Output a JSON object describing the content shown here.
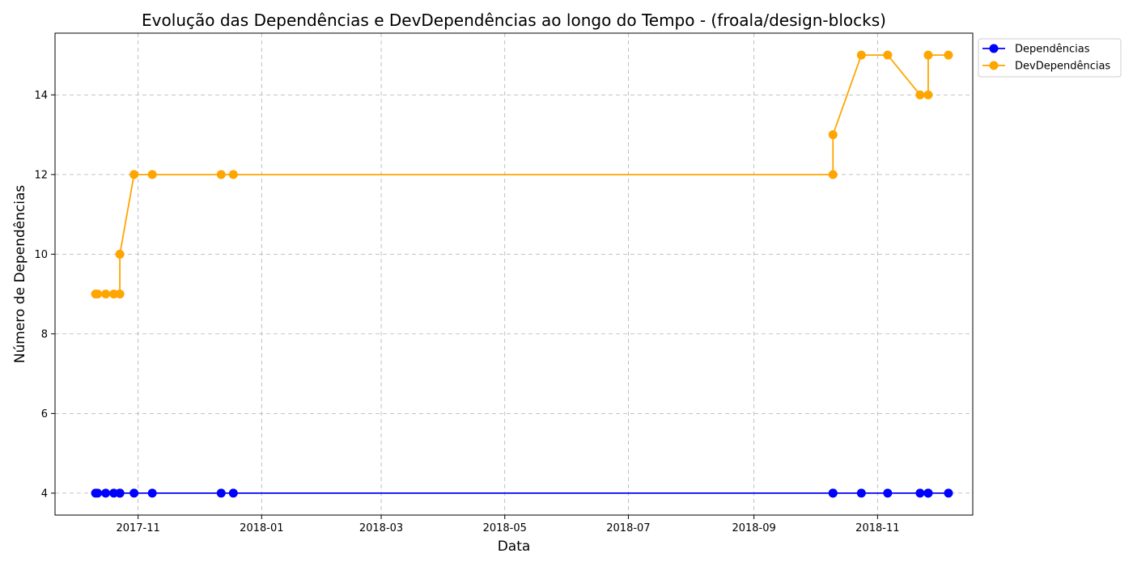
{
  "chart_data": {
    "type": "line",
    "title": "Evolução das Dependências e DevDependências ao longo do Tempo - (froala/design-blocks)",
    "xlabel": "Data",
    "ylabel": "Número de Dependências",
    "x_ticks": [
      "2017-11",
      "2018-01",
      "2018-03",
      "2018-05",
      "2018-07",
      "2018-09",
      "2018-11"
    ],
    "y_ticks": [
      "4",
      "6",
      "8",
      "10",
      "12",
      "14"
    ],
    "xlim": [
      "2017-09-21",
      "2018-12-18"
    ],
    "ylim": [
      3.45,
      15.55
    ],
    "grid": true,
    "legend_position": "top-right",
    "x": [
      "2017-10-11",
      "2017-10-12",
      "2017-10-16",
      "2017-10-20",
      "2017-10-23",
      "2017-10-23",
      "2017-10-30",
      "2017-11-08",
      "2017-12-12",
      "2017-12-18",
      "2018-10-10",
      "2018-10-10",
      "2018-10-24",
      "2018-11-06",
      "2018-11-22",
      "2018-11-26",
      "2018-11-26",
      "2018-12-06"
    ],
    "series": [
      {
        "name": "Dependências",
        "color": "#0000ff",
        "values": [
          4,
          4,
          4,
          4,
          4,
          4,
          4,
          4,
          4,
          4,
          4,
          4,
          4,
          4,
          4,
          4,
          4,
          4
        ]
      },
      {
        "name": "DevDependências",
        "color": "#ffa500",
        "values": [
          9,
          9,
          9,
          9,
          9,
          10,
          12,
          12,
          12,
          12,
          12,
          13,
          15,
          15,
          14,
          14,
          15,
          15
        ]
      }
    ]
  }
}
